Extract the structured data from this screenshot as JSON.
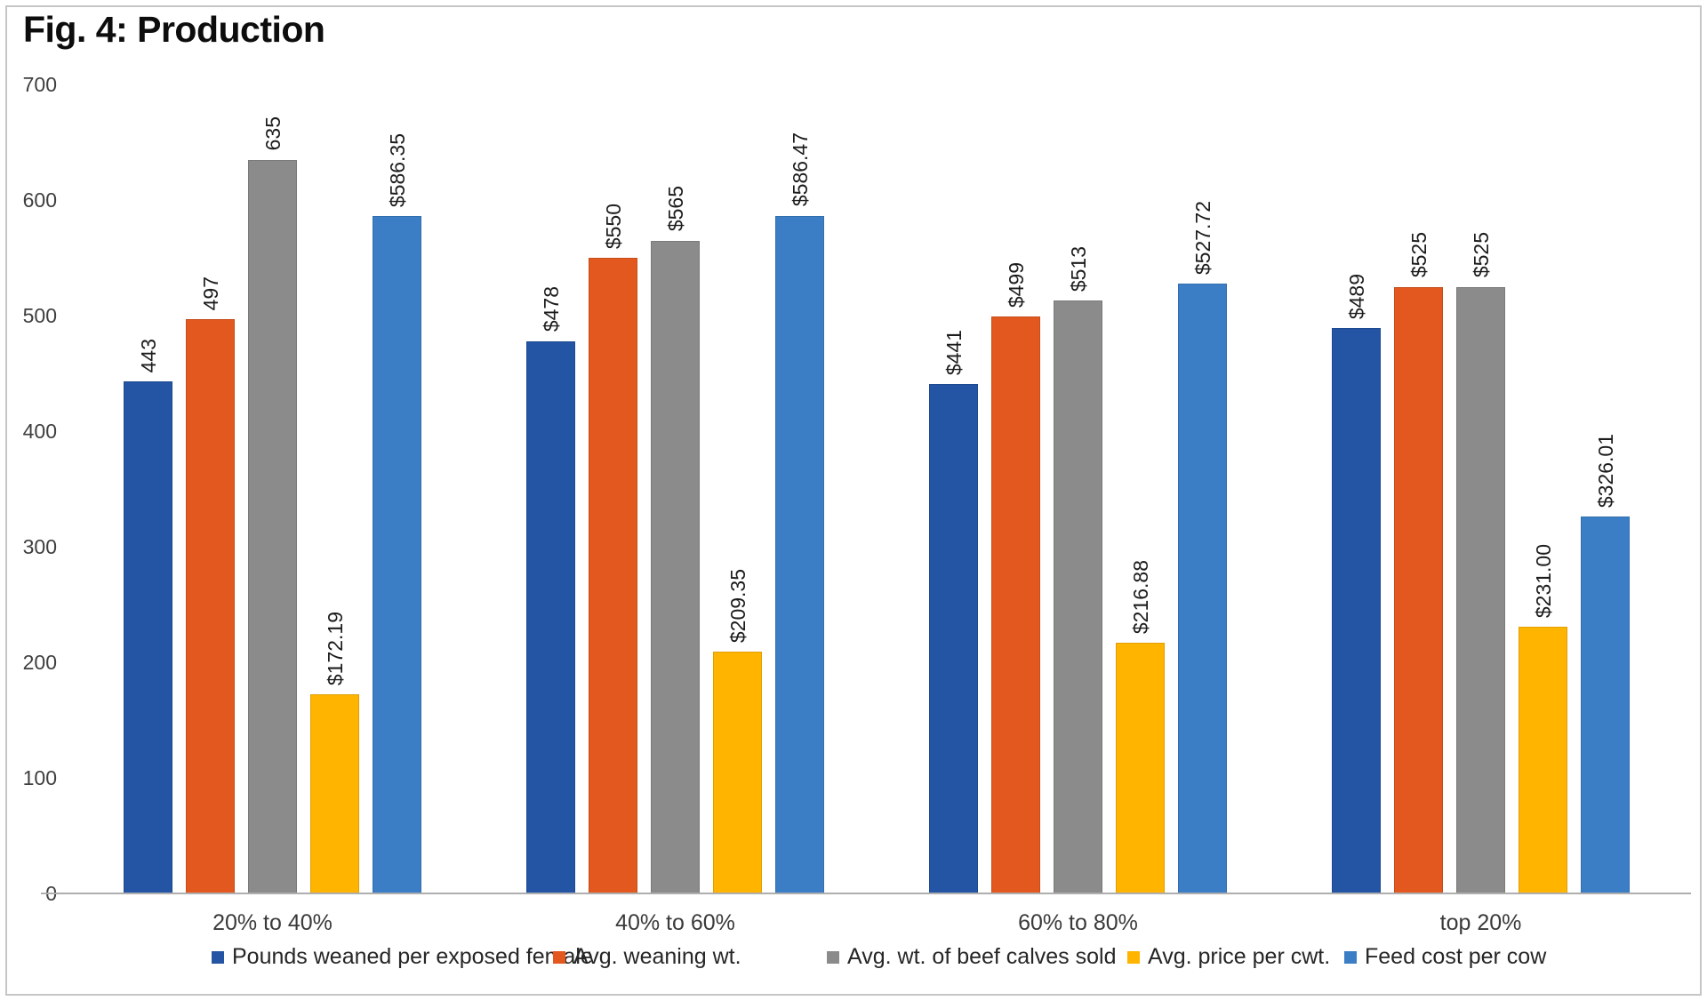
{
  "chart_data": {
    "type": "bar",
    "title": "Fig. 4: Production",
    "categories": [
      "20% to 40%",
      "40% to 60%",
      "60% to 80%",
      "top 20%"
    ],
    "series": [
      {
        "name": "Pounds weaned per exposed female",
        "color": "#2355A4",
        "values": [
          443,
          478,
          441,
          489
        ],
        "labels": [
          "443",
          "$478",
          "$441",
          "$489"
        ]
      },
      {
        "name": "Avg. weaning wt.",
        "color": "#E2581E",
        "values": [
          497,
          550,
          499,
          525
        ],
        "labels": [
          "497",
          "$550",
          "$499",
          "$525"
        ]
      },
      {
        "name": "Avg. wt. of beef calves sold",
        "color": "#8B8B8B",
        "values": [
          635,
          565,
          513,
          525
        ],
        "labels": [
          "635",
          "$565",
          "$513",
          "$525"
        ]
      },
      {
        "name": "Avg. price per cwt.",
        "color": "#FFB400",
        "values": [
          172.19,
          209.35,
          216.88,
          231.0
        ],
        "labels": [
          "$172.19",
          "$209.35",
          "$216.88",
          "$231.00"
        ]
      },
      {
        "name": "Feed cost per cow",
        "color": "#3B7EC6",
        "values": [
          586.35,
          586.47,
          527.72,
          326.01
        ],
        "labels": [
          "$586.35",
          "$586.47",
          "$527.72",
          "$326.01"
        ]
      }
    ],
    "y_axis": {
      "min": 0,
      "max": 700,
      "step": 100,
      "ticks": [
        700,
        600,
        500,
        400,
        300,
        200,
        100,
        0
      ]
    },
    "legend_position": "bottom",
    "grid": false
  }
}
